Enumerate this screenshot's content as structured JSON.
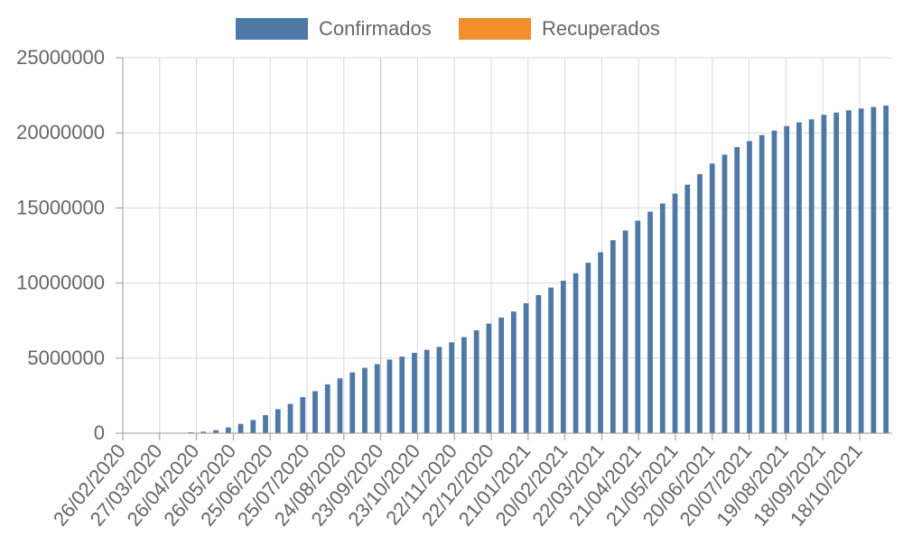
{
  "chart_data": {
    "type": "bar",
    "legend_position": "top-center",
    "grid": true,
    "ylim": [
      0,
      25000000
    ],
    "y_ticks": [
      "0",
      "5000000",
      "10000000",
      "15000000",
      "20000000",
      "25000000"
    ],
    "x_tick_labels": [
      "26/02/2020",
      "27/03/2020",
      "26/04/2020",
      "26/05/2020",
      "25/06/2020",
      "25/07/2020",
      "24/08/2020",
      "23/09/2020",
      "23/10/2020",
      "22/11/2020",
      "22/12/2020",
      "21/01/2021",
      "20/02/2021",
      "22/03/2021",
      "21/04/2021",
      "21/05/2021",
      "20/06/2021",
      "20/07/2021",
      "19/08/2021",
      "18/09/2021",
      "18/10/2021"
    ],
    "series": [
      {
        "name": "Confirmados",
        "color": "#4e79a7",
        "values": [
          0,
          0,
          5000,
          10000,
          30000,
          60000,
          100000,
          200000,
          380000,
          620000,
          880000,
          1200000,
          1600000,
          1950000,
          2400000,
          2800000,
          3250000,
          3650000,
          4050000,
          4350000,
          4600000,
          4900000,
          5100000,
          5350000,
          5550000,
          5750000,
          6050000,
          6400000,
          6850000,
          7300000,
          7700000,
          8100000,
          8650000,
          9200000,
          9700000,
          10150000,
          10650000,
          11350000,
          12050000,
          12850000,
          13500000,
          14150000,
          14750000,
          15300000,
          15950000,
          16550000,
          17250000,
          17950000,
          18550000,
          19050000,
          19450000,
          19850000,
          20150000,
          20450000,
          20700000,
          20900000,
          21200000,
          21350000,
          21500000,
          21620000,
          21720000,
          21820000
        ]
      },
      {
        "name": "Recuperados",
        "color": "#f28e2b",
        "values": []
      }
    ]
  }
}
